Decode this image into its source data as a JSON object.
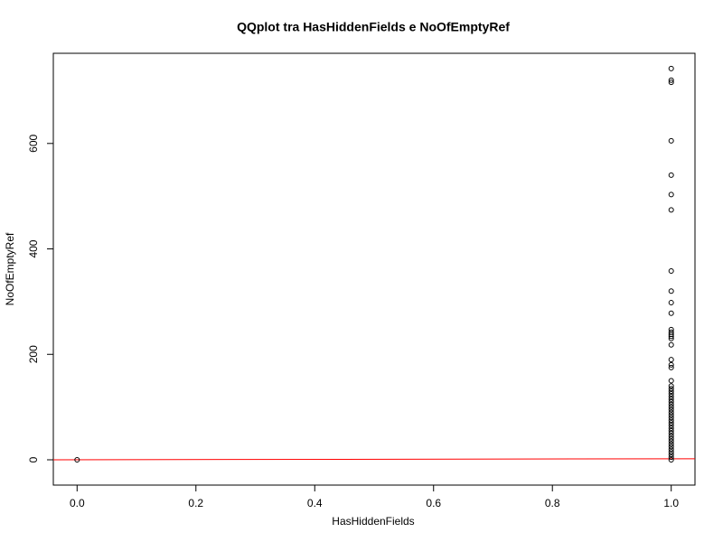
{
  "chart_data": {
    "type": "scatter",
    "title": "QQplot tra HasHiddenFields e NoOfEmptyRef",
    "x_label": "HasHiddenFields",
    "y_label": "NoOfEmptyRef",
    "xlim": [
      -0.04,
      1.04
    ],
    "ylim": [
      -48,
      771
    ],
    "xticks": [
      {
        "value": 0,
        "label": "0.0"
      },
      0.2,
      0.4,
      0.6,
      0.8,
      {
        "value": 1,
        "label": "1.0"
      }
    ],
    "yticks": [
      0,
      200,
      400,
      600
    ],
    "series": [
      {
        "color": "#000000",
        "x": [
          0,
          1,
          1,
          1,
          1,
          1,
          1,
          1,
          1,
          1,
          1,
          1,
          1,
          1,
          1,
          1,
          1,
          1,
          1,
          1,
          1,
          1,
          1,
          1,
          1,
          1,
          1,
          1,
          1,
          1,
          1,
          1,
          1,
          1,
          1,
          1,
          1,
          1,
          1,
          1,
          1,
          1,
          1,
          1,
          1,
          1,
          1,
          1,
          1,
          1,
          1
        ],
        "y": [
          0,
          742,
          720,
          716,
          605,
          540,
          503,
          474,
          358,
          320,
          298,
          278,
          247,
          242,
          238,
          234,
          230,
          218,
          190,
          180,
          175,
          150,
          140,
          135,
          130,
          125,
          120,
          115,
          110,
          105,
          100,
          95,
          90,
          85,
          80,
          75,
          70,
          65,
          60,
          55,
          50,
          45,
          40,
          35,
          30,
          25,
          20,
          15,
          10,
          5,
          0
        ]
      }
    ],
    "line": {
      "color": "#ff0000",
      "x": [
        -0.04,
        1.04
      ],
      "y": [
        0,
        2
      ]
    }
  }
}
